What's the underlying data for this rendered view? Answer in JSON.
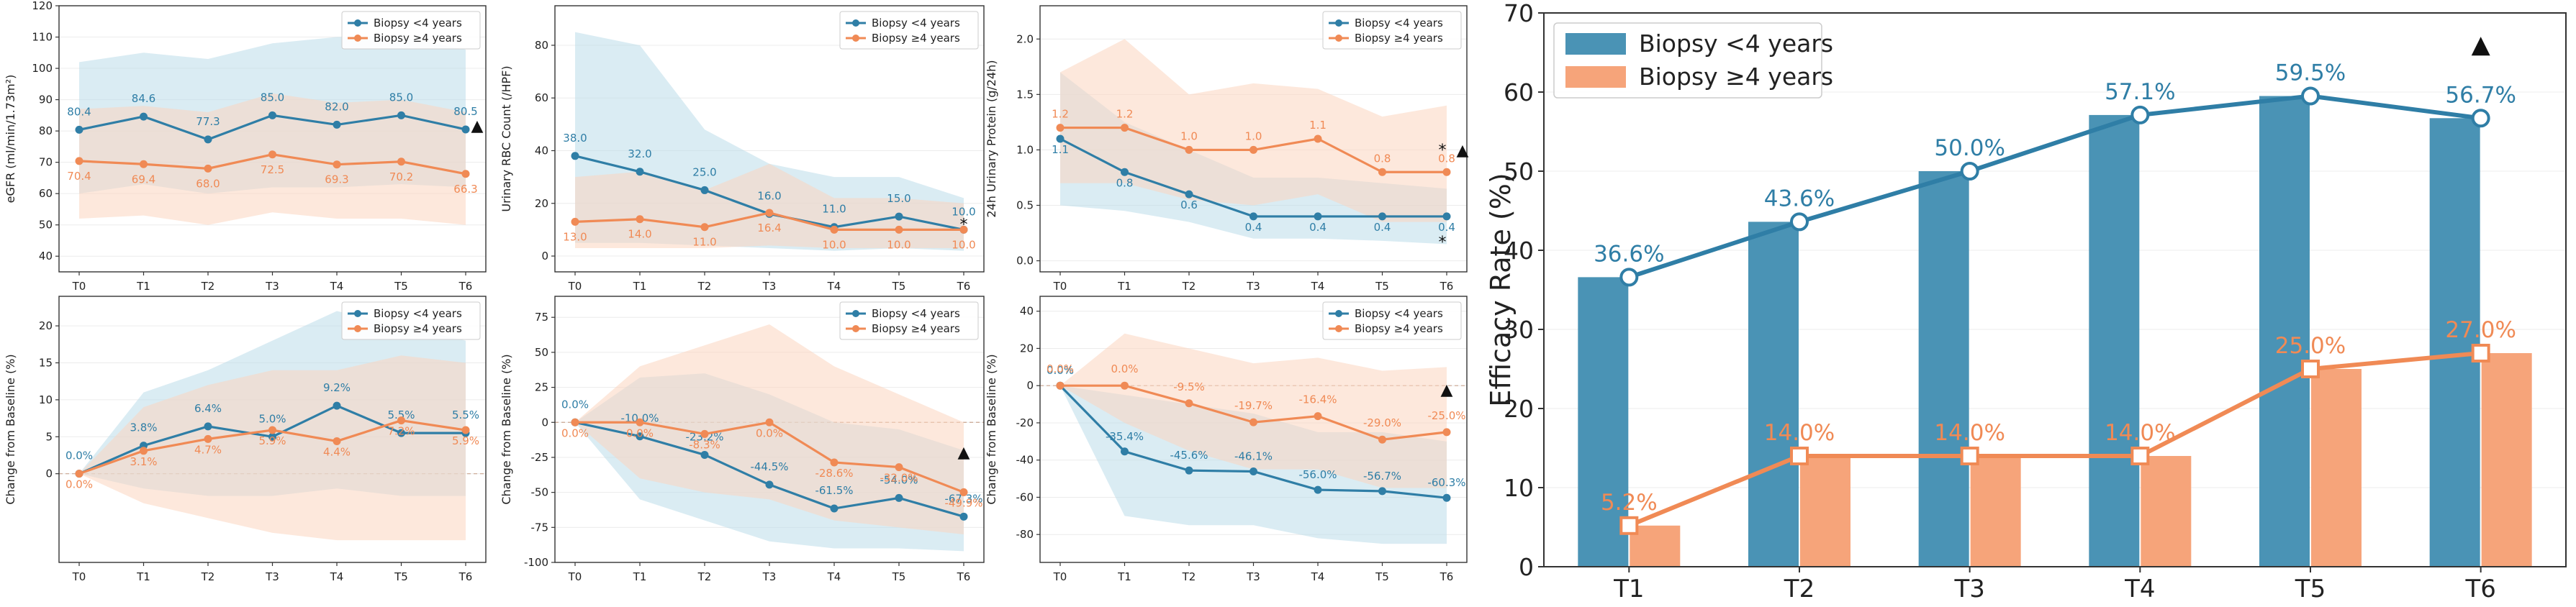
{
  "colors": {
    "blue": "#2f7ea6",
    "orange": "#f08a55",
    "blue_band": "#bcdcea",
    "orange_band": "#fbd6bf",
    "bar_blue": "#4a93b5",
    "bar_orange": "#f6a47a"
  },
  "legend_labels": [
    "Biopsy <4 years",
    "Biopsy ≥4 years"
  ],
  "chart_data": [
    {
      "type": "line",
      "panel": "eGFR",
      "categories": [
        "T0",
        "T1",
        "T2",
        "T3",
        "T4",
        "T5",
        "T6"
      ],
      "ylabel": "eGFR (ml/min/1.73m²)",
      "ylim": [
        35,
        120
      ],
      "yticks": [
        "40",
        "50",
        "60",
        "70",
        "80",
        "90",
        "100",
        "110",
        "120"
      ],
      "legend": "top-right",
      "series": [
        {
          "name": "Biopsy <4 years",
          "values": [
            80.4,
            84.6,
            77.3,
            85.0,
            82.0,
            85.0,
            80.5
          ],
          "labels": [
            "80.4",
            "84.6",
            "77.3",
            "85.0",
            "82.0",
            "85.0",
            "80.5"
          ],
          "band_low": [
            60,
            63,
            60,
            62,
            62,
            63,
            62
          ],
          "band_high": [
            102,
            105,
            103,
            108,
            110,
            110,
            106
          ]
        },
        {
          "name": "Biopsy ≥4 years",
          "values": [
            70.4,
            69.4,
            68.0,
            72.5,
            69.3,
            70.2,
            66.3
          ],
          "labels": [
            "70.4",
            "69.4",
            "68.0",
            "72.5",
            "69.3",
            "70.2",
            "66.3"
          ],
          "band_low": [
            52,
            53,
            50,
            54,
            52,
            52,
            50
          ],
          "band_high": [
            87,
            88,
            86,
            92,
            89,
            90,
            86
          ]
        }
      ],
      "markers": [
        "▲"
      ]
    },
    {
      "type": "line",
      "panel": "Urinary RBC",
      "categories": [
        "T0",
        "T1",
        "T2",
        "T3",
        "T4",
        "T5",
        "T6"
      ],
      "ylabel": "Urinary RBC Count (/HPF)",
      "ylim": [
        -6,
        95
      ],
      "yticks": [
        "0",
        "20",
        "40",
        "60",
        "80"
      ],
      "legend": "top-right",
      "series": [
        {
          "name": "Biopsy <4 years",
          "values": [
            38.0,
            32.0,
            25.0,
            16.0,
            11.0,
            15.0,
            10.0
          ],
          "labels": [
            "38.0",
            "32.0",
            "25.0",
            "16.0",
            "11.0",
            "15.0",
            "10.0"
          ],
          "band_low": [
            5,
            5,
            4,
            3,
            2,
            3,
            2
          ],
          "band_high": [
            85,
            80,
            48,
            35,
            30,
            30,
            22
          ]
        },
        {
          "name": "Biopsy ≥4 years",
          "values": [
            13.0,
            14.0,
            11.0,
            16.4,
            10.0,
            10.0,
            10.0
          ],
          "labels": [
            "13.0",
            "14.0",
            "11.0",
            "16.4",
            "10.0",
            "10.0",
            "10.0"
          ],
          "band_low": [
            3,
            3,
            3,
            4,
            3,
            3,
            3
          ],
          "band_high": [
            30,
            32,
            25,
            35,
            22,
            22,
            20
          ]
        }
      ],
      "markers": [
        "*"
      ]
    },
    {
      "type": "line",
      "panel": "24h Urinary Protein",
      "categories": [
        "T0",
        "T1",
        "T2",
        "T3",
        "T4",
        "T5",
        "T6"
      ],
      "ylabel": "24h Urinary Protein (g/24h)",
      "ylim": [
        -0.1,
        2.3
      ],
      "yticks": [
        "0.0",
        "0.5",
        "1.0",
        "1.5",
        "2.0"
      ],
      "legend": "top-right",
      "series": [
        {
          "name": "Biopsy <4 years",
          "values": [
            1.1,
            0.8,
            0.6,
            0.4,
            0.4,
            0.4,
            0.4
          ],
          "labels": [
            "1.1",
            "0.8",
            "0.6",
            "0.4",
            "0.4",
            "0.4",
            "0.4"
          ],
          "band_low": [
            0.5,
            0.45,
            0.35,
            0.2,
            0.2,
            0.18,
            0.15
          ],
          "band_high": [
            1.7,
            1.25,
            1.0,
            0.75,
            0.75,
            0.7,
            0.65
          ]
        },
        {
          "name": "Biopsy ≥4 years",
          "values": [
            1.2,
            1.2,
            1.0,
            1.0,
            1.1,
            0.8,
            0.8
          ],
          "labels": [
            "1.2",
            "1.2",
            "1.0",
            "1.0",
            "1.1",
            "0.8",
            "0.8"
          ],
          "band_low": [
            0.7,
            0.7,
            0.55,
            0.5,
            0.6,
            0.35,
            0.35
          ],
          "band_high": [
            1.7,
            2.0,
            1.5,
            1.6,
            1.55,
            1.3,
            1.4
          ]
        }
      ],
      "markers": [
        "*",
        "▲",
        "*"
      ]
    },
    {
      "type": "line",
      "panel": "eGFR change",
      "categories": [
        "T0",
        "T1",
        "T2",
        "T3",
        "T4",
        "T5",
        "T6"
      ],
      "ylabel": "Change from Baseline (%)",
      "ylim": [
        -12,
        24
      ],
      "yticks": [
        "0",
        "5",
        "10",
        "15",
        "20"
      ],
      "legend": "top-right",
      "series": [
        {
          "name": "Biopsy <4 years",
          "values": [
            0.0,
            3.8,
            6.4,
            5.0,
            9.2,
            5.5,
            5.5
          ],
          "labels": [
            "0.0%",
            "3.8%",
            "6.4%",
            "5.0%",
            "9.2%",
            "5.5%",
            "5.5%"
          ],
          "band_low": [
            0,
            -2,
            -3,
            -3,
            -2,
            -3,
            -3
          ],
          "band_high": [
            0,
            11,
            14,
            18,
            22,
            20,
            18
          ]
        },
        {
          "name": "Biopsy ≥4 years",
          "values": [
            0.0,
            3.1,
            4.7,
            5.9,
            4.4,
            7.2,
            5.9
          ],
          "labels": [
            "0.0%",
            "3.1%",
            "4.7%",
            "5.9%",
            "4.4%",
            "7.2%",
            "5.9%"
          ],
          "band_low": [
            0,
            -4,
            -6,
            -8,
            -9,
            -9,
            -9
          ],
          "band_high": [
            0,
            9,
            12,
            14,
            14,
            16,
            15
          ]
        }
      ]
    },
    {
      "type": "line",
      "panel": "RBC change",
      "categories": [
        "T0",
        "T1",
        "T2",
        "T3",
        "T4",
        "T5",
        "T6"
      ],
      "ylabel": "Change from Baseline (%)",
      "ylim": [
        -100,
        90
      ],
      "yticks": [
        "-100",
        "-75",
        "-50",
        "-25",
        "0",
        "25",
        "50",
        "75"
      ],
      "legend": "top-right",
      "series": [
        {
          "name": "Biopsy <4 years",
          "values": [
            0.0,
            -10.0,
            -23.2,
            -44.5,
            -61.5,
            -54.0,
            -67.3
          ],
          "labels": [
            "0.0%",
            "-10.0%",
            "-23.2%",
            "-44.5%",
            "-61.5%",
            "-54.0%",
            "-67.3%"
          ],
          "band_low": [
            0,
            -55,
            -70,
            -85,
            -90,
            -90,
            -92
          ],
          "band_high": [
            0,
            32,
            35,
            20,
            0,
            -5,
            -20
          ]
        },
        {
          "name": "Biopsy ≥4 years",
          "values": [
            0.0,
            0.0,
            -8.3,
            0.0,
            -28.6,
            -32.0,
            -49.9
          ],
          "labels": [
            "0.0%",
            "0.0%",
            "-8.3%",
            "0.0%",
            "-28.6%",
            "-32.0%",
            "-49.9%"
          ],
          "band_low": [
            0,
            -40,
            -50,
            -55,
            -70,
            -75,
            -80
          ],
          "band_high": [
            0,
            40,
            55,
            70,
            40,
            20,
            0
          ]
        }
      ],
      "markers": [
        "▲"
      ]
    },
    {
      "type": "line",
      "panel": "Protein change",
      "categories": [
        "T0",
        "T1",
        "T2",
        "T3",
        "T4",
        "T5",
        "T6"
      ],
      "ylabel": "Change from Baseline (%)",
      "ylim": [
        -95,
        48
      ],
      "yticks": [
        "-80",
        "-60",
        "-40",
        "-20",
        "0",
        "20",
        "40"
      ],
      "legend": "top-right",
      "series": [
        {
          "name": "Biopsy <4 years",
          "values": [
            0.0,
            -35.4,
            -45.6,
            -46.1,
            -56.0,
            -56.7,
            -60.3
          ],
          "labels": [
            "0.0%",
            "-35.4%",
            "-45.6%",
            "-46.1%",
            "-56.0%",
            "-56.7%",
            "-60.3%"
          ],
          "band_low": [
            0,
            -70,
            -75,
            -75,
            -82,
            -85,
            -85
          ],
          "band_high": [
            0,
            -5,
            -10,
            -15,
            -25,
            -25,
            -30
          ]
        },
        {
          "name": "Biopsy ≥4 years",
          "values": [
            0.0,
            0.0,
            -9.5,
            -19.7,
            -16.4,
            -29.0,
            -25.0
          ],
          "labels": [
            "0.0%",
            "0.0%",
            "-9.5%",
            "-19.7%",
            "-16.4%",
            "-29.0%",
            "-25.0%"
          ],
          "band_low": [
            0,
            -20,
            -35,
            -45,
            -45,
            -55,
            -55
          ],
          "band_high": [
            0,
            28,
            20,
            12,
            15,
            8,
            10
          ]
        }
      ],
      "markers": [
        "▲"
      ]
    },
    {
      "type": "bar",
      "categories": [
        "T1",
        "T2",
        "T3",
        "T4",
        "T5",
        "T6"
      ],
      "ylabel": "Efficacy Rate (%)",
      "ylim": [
        0,
        70
      ],
      "yticks": [
        "0",
        "10",
        "20",
        "30",
        "40",
        "50",
        "60",
        "70"
      ],
      "legend": "top-left",
      "series": [
        {
          "name": "Biopsy <4 years",
          "values": [
            36.6,
            43.6,
            50.0,
            57.1,
            59.5,
            56.7
          ],
          "labels": [
            "36.6%",
            "43.6%",
            "50.0%",
            "57.1%",
            "59.5%",
            "56.7%"
          ]
        },
        {
          "name": "Biopsy ≥4 years",
          "values": [
            5.2,
            14.0,
            14.0,
            14.0,
            25.0,
            27.0
          ],
          "labels": [
            "5.2%",
            "14.0%",
            "14.0%",
            "14.0%",
            "25.0%",
            "27.0%"
          ]
        }
      ],
      "markers": [
        "▲"
      ]
    }
  ]
}
